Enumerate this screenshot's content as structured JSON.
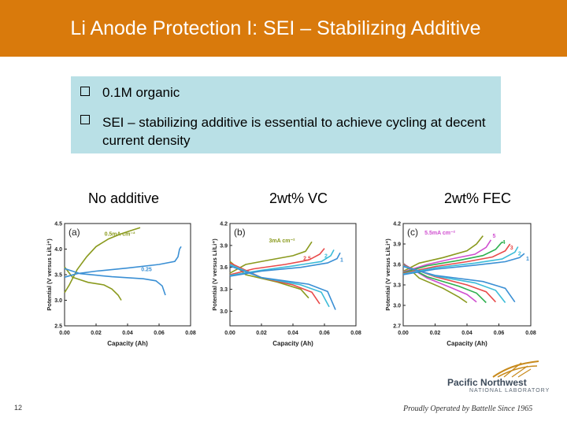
{
  "header": {
    "title": "Li Anode Protection I: SEI – Stabilizing Additive"
  },
  "bullets": [
    "0.1M organic",
    "SEI – stabilizing additive is essential to achieve cycling at decent current density"
  ],
  "columns": [
    "No additive",
    "2wt% VC",
    "2wt% FEC"
  ],
  "colors": {
    "header": "#d97a0c",
    "callout": "#b9e0e6"
  },
  "footer": {
    "page_number": "12",
    "logo_name": "Pacific Northwest",
    "logo_sub": "NATIONAL LABORATORY",
    "tagline": "Proudly Operated by Battelle Since 1965"
  },
  "chart_data": [
    {
      "type": "line",
      "panel": "(a)",
      "xlabel": "Capacity (Ah)",
      "ylabel": "Potential (V versus Li/Li⁺)",
      "xlim": [
        0,
        0.08
      ],
      "ylim": [
        2.5,
        4.5
      ],
      "xticks": [
        "0.00",
        "0.02",
        "0.04",
        "0.06",
        "0.08"
      ],
      "yticks": [
        "2.5",
        "3.0",
        "3.5",
        "4.0",
        "4.5"
      ],
      "annotations": [
        "0.5mA cm⁻²",
        "0.25"
      ],
      "series": [
        {
          "color": "#8a9a1e",
          "label": "0.5mA cm⁻²",
          "points": [
            [
              0,
              3.15
            ],
            [
              0.003,
              3.3
            ],
            [
              0.008,
              3.6
            ],
            [
              0.014,
              3.85
            ],
            [
              0.02,
              4.05
            ],
            [
              0.028,
              4.2
            ],
            [
              0.036,
              4.3
            ],
            [
              0.044,
              4.38
            ],
            [
              0.048,
              4.42
            ]
          ]
        },
        {
          "color": "#8a9a1e",
          "label": "",
          "points": [
            [
              0,
              3.65
            ],
            [
              0.005,
              3.45
            ],
            [
              0.015,
              3.35
            ],
            [
              0.025,
              3.3
            ],
            [
              0.03,
              3.22
            ],
            [
              0.034,
              3.1
            ],
            [
              0.036,
              3.0
            ]
          ]
        },
        {
          "color": "#3a8fd4",
          "label": "0.25",
          "points": [
            [
              0,
              3.45
            ],
            [
              0.008,
              3.52
            ],
            [
              0.02,
              3.57
            ],
            [
              0.04,
              3.63
            ],
            [
              0.06,
              3.7
            ],
            [
              0.07,
              3.76
            ],
            [
              0.072,
              3.85
            ],
            [
              0.073,
              4.0
            ],
            [
              0.074,
              4.05
            ]
          ]
        },
        {
          "color": "#3a8fd4",
          "label": "",
          "points": [
            [
              0,
              3.62
            ],
            [
              0.01,
              3.52
            ],
            [
              0.03,
              3.46
            ],
            [
              0.05,
              3.42
            ],
            [
              0.058,
              3.38
            ],
            [
              0.062,
              3.28
            ],
            [
              0.064,
              3.1
            ]
          ]
        }
      ]
    },
    {
      "type": "line",
      "panel": "(b)",
      "xlabel": "Capacity (Ah)",
      "ylabel": "Potential (V versus Li/Li⁺)",
      "xlim": [
        0,
        0.08
      ],
      "ylim": [
        2.8,
        4.2
      ],
      "xticks": [
        "0.00",
        "0.02",
        "0.04",
        "0.06",
        "0.08"
      ],
      "yticks": [
        "3.0",
        "3.3",
        "3.6",
        "3.9",
        "4.2"
      ],
      "annotations": [
        "3mA cm⁻²",
        "2.5",
        "2",
        "1"
      ],
      "series": [
        {
          "color": "#8a9a1e",
          "label": "3mA cm⁻²",
          "points": [
            [
              0,
              3.52
            ],
            [
              0.01,
              3.64
            ],
            [
              0.025,
              3.7
            ],
            [
              0.04,
              3.76
            ],
            [
              0.048,
              3.82
            ],
            [
              0.052,
              3.95
            ]
          ]
        },
        {
          "color": "#8a9a1e",
          "label": "",
          "points": [
            [
              0,
              3.68
            ],
            [
              0.01,
              3.5
            ],
            [
              0.03,
              3.4
            ],
            [
              0.045,
              3.3
            ],
            [
              0.05,
              3.18
            ]
          ]
        },
        {
          "color": "#e84a4a",
          "label": "2.5",
          "points": [
            [
              0,
              3.5
            ],
            [
              0.015,
              3.58
            ],
            [
              0.035,
              3.64
            ],
            [
              0.05,
              3.7
            ],
            [
              0.057,
              3.78
            ],
            [
              0.06,
              3.86
            ]
          ]
        },
        {
          "color": "#e84a4a",
          "label": "",
          "points": [
            [
              0,
              3.66
            ],
            [
              0.02,
              3.46
            ],
            [
              0.04,
              3.36
            ],
            [
              0.052,
              3.26
            ],
            [
              0.057,
              3.1
            ]
          ]
        },
        {
          "color": "#3cbcd8",
          "label": "2",
          "points": [
            [
              0,
              3.49
            ],
            [
              0.02,
              3.56
            ],
            [
              0.04,
              3.62
            ],
            [
              0.058,
              3.68
            ],
            [
              0.064,
              3.76
            ],
            [
              0.066,
              3.84
            ]
          ]
        },
        {
          "color": "#3cbcd8",
          "label": "",
          "points": [
            [
              0,
              3.64
            ],
            [
              0.02,
              3.46
            ],
            [
              0.045,
              3.36
            ],
            [
              0.058,
              3.26
            ],
            [
              0.063,
              3.06
            ]
          ]
        },
        {
          "color": "#3a8fd4",
          "label": "1",
          "points": [
            [
              0,
              3.48
            ],
            [
              0.02,
              3.55
            ],
            [
              0.045,
              3.6
            ],
            [
              0.062,
              3.66
            ],
            [
              0.068,
              3.72
            ],
            [
              0.07,
              3.8
            ]
          ]
        },
        {
          "color": "#3a8fd4",
          "label": "",
          "points": [
            [
              0,
              3.62
            ],
            [
              0.02,
              3.46
            ],
            [
              0.05,
              3.37
            ],
            [
              0.062,
              3.27
            ],
            [
              0.067,
              3.02
            ]
          ]
        }
      ]
    },
    {
      "type": "line",
      "panel": "(c)",
      "xlabel": "Capacity (Ah)",
      "ylabel": "Potential (V versus Li/Li⁺)",
      "xlim": [
        0,
        0.08
      ],
      "ylim": [
        2.7,
        4.2
      ],
      "xticks": [
        "0.00",
        "0.02",
        "0.04",
        "0.06",
        "0.08"
      ],
      "yticks": [
        "2.7",
        "3.0",
        "3.3",
        "3.6",
        "3.9",
        "4.2"
      ],
      "annotations": [
        "5.5mA cm⁻²",
        "5",
        "4",
        "3",
        "2",
        "1"
      ],
      "series": [
        {
          "color": "#8a9a1e",
          "label": "5.5mA cm⁻²",
          "points": [
            [
              0,
              3.5
            ],
            [
              0.01,
              3.62
            ],
            [
              0.025,
              3.7
            ],
            [
              0.04,
              3.8
            ],
            [
              0.046,
              3.9
            ],
            [
              0.05,
              4.02
            ]
          ]
        },
        {
          "color": "#8a9a1e",
          "label": "",
          "points": [
            [
              0,
              3.62
            ],
            [
              0.01,
              3.4
            ],
            [
              0.025,
              3.25
            ],
            [
              0.035,
              3.12
            ],
            [
              0.04,
              3.04
            ]
          ]
        },
        {
          "color": "#d04fd0",
          "label": "5",
          "points": [
            [
              0,
              3.49
            ],
            [
              0.015,
              3.6
            ],
            [
              0.03,
              3.68
            ],
            [
              0.045,
              3.75
            ],
            [
              0.052,
              3.85
            ],
            [
              0.055,
              3.96
            ]
          ]
        },
        {
          "color": "#d04fd0",
          "label": "",
          "points": [
            [
              0,
              3.61
            ],
            [
              0.015,
              3.4
            ],
            [
              0.03,
              3.26
            ],
            [
              0.04,
              3.16
            ],
            [
              0.046,
              3.05
            ]
          ]
        },
        {
          "color": "#2db04e",
          "label": "4",
          "points": [
            [
              0,
              3.48
            ],
            [
              0.015,
              3.58
            ],
            [
              0.035,
              3.66
            ],
            [
              0.05,
              3.73
            ],
            [
              0.058,
              3.82
            ],
            [
              0.062,
              3.93
            ]
          ]
        },
        {
          "color": "#2db04e",
          "label": "",
          "points": [
            [
              0,
              3.6
            ],
            [
              0.015,
              3.42
            ],
            [
              0.035,
              3.28
            ],
            [
              0.046,
              3.18
            ],
            [
              0.052,
              3.04
            ]
          ]
        },
        {
          "color": "#e84a4a",
          "label": "3",
          "points": [
            [
              0,
              3.47
            ],
            [
              0.02,
              3.57
            ],
            [
              0.04,
              3.64
            ],
            [
              0.056,
              3.71
            ],
            [
              0.064,
              3.8
            ],
            [
              0.067,
              3.9
            ]
          ]
        },
        {
          "color": "#e84a4a",
          "label": "",
          "points": [
            [
              0,
              3.59
            ],
            [
              0.02,
              3.42
            ],
            [
              0.04,
              3.3
            ],
            [
              0.052,
              3.2
            ],
            [
              0.058,
              3.05
            ]
          ]
        },
        {
          "color": "#3cbcd8",
          "label": "2",
          "points": [
            [
              0,
              3.46
            ],
            [
              0.02,
              3.55
            ],
            [
              0.045,
              3.62
            ],
            [
              0.062,
              3.68
            ],
            [
              0.07,
              3.78
            ],
            [
              0.072,
              3.86
            ]
          ]
        },
        {
          "color": "#3cbcd8",
          "label": "",
          "points": [
            [
              0,
              3.58
            ],
            [
              0.02,
              3.43
            ],
            [
              0.045,
              3.33
            ],
            [
              0.058,
              3.22
            ],
            [
              0.064,
              3.04
            ]
          ]
        },
        {
          "color": "#3a8fd4",
          "label": "1",
          "points": [
            [
              0,
              3.45
            ],
            [
              0.02,
              3.53
            ],
            [
              0.045,
              3.59
            ],
            [
              0.064,
              3.64
            ],
            [
              0.073,
              3.7
            ],
            [
              0.076,
              3.76
            ]
          ]
        },
        {
          "color": "#3a8fd4",
          "label": "",
          "points": [
            [
              0,
              3.57
            ],
            [
              0.02,
              3.44
            ],
            [
              0.05,
              3.35
            ],
            [
              0.064,
              3.25
            ],
            [
              0.07,
              3.05
            ]
          ]
        }
      ]
    }
  ]
}
